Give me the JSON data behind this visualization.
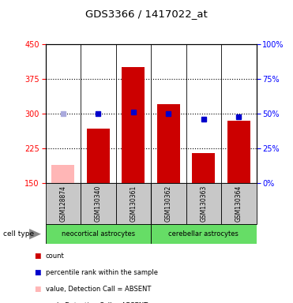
{
  "title": "GDS3366 / 1417022_at",
  "samples": [
    "GSM128874",
    "GSM130340",
    "GSM130361",
    "GSM130362",
    "GSM130363",
    "GSM130364"
  ],
  "counts": [
    190,
    268,
    400,
    320,
    215,
    285
  ],
  "percentiles": [
    50,
    50,
    51,
    50,
    46,
    48
  ],
  "absent_flags": [
    true,
    false,
    false,
    false,
    false,
    false
  ],
  "ylim_left": [
    150,
    450
  ],
  "ylim_right": [
    0,
    100
  ],
  "yticks_left": [
    150,
    225,
    300,
    375,
    450
  ],
  "yticks_right": [
    0,
    25,
    50,
    75,
    100
  ],
  "bar_color_present": "#cc0000",
  "bar_color_absent": "#ffb6b6",
  "dot_color_present": "#0000cc",
  "dot_color_absent": "#aaaadd",
  "sample_bg_color": "#c8c8c8",
  "group1_label": "neocortical astrocytes",
  "group2_label": "cerebellar astrocytes",
  "group_color": "#66dd66",
  "legend_items": [
    {
      "label": "count",
      "color": "#cc0000"
    },
    {
      "label": "percentile rank within the sample",
      "color": "#0000cc"
    },
    {
      "label": "value, Detection Call = ABSENT",
      "color": "#ffb6b6"
    },
    {
      "label": "rank, Detection Call = ABSENT",
      "color": "#aaaadd"
    }
  ]
}
